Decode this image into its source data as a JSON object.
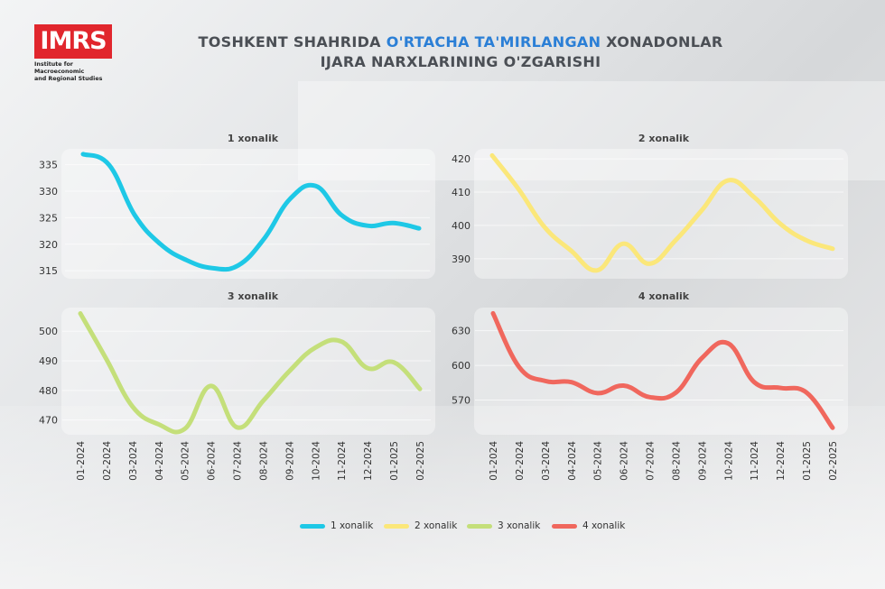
{
  "logo": {
    "text": "IMRS",
    "line1": "Institute for Macroeconomic",
    "line2": "and Regional Studies"
  },
  "title": {
    "line1_part1": "TOSHKENT SHAHRIDA ",
    "line1_highlight": "O'RTACHA TA'MIRLANGAN",
    "line1_part2": " XONADONLAR",
    "line2": "IJARA NARXLARINING O'ZGARISHI",
    "highlight_color": "#2b7fd6"
  },
  "chart_data": [
    {
      "type": "line",
      "title": "1 xonalik",
      "color": "#1ec8e6",
      "x": [
        "01-2024",
        "02-2024",
        "03-2024",
        "04-2024",
        "05-2024",
        "06-2024",
        "07-2024",
        "08-2024",
        "09-2024",
        "10-2024",
        "11-2024",
        "12-2024",
        "01-2025",
        "02-2025"
      ],
      "values": [
        337,
        335,
        325.5,
        320,
        317,
        315.5,
        316,
        321,
        328.5,
        331,
        325.5,
        323.5,
        324,
        323
      ],
      "yticks": [
        315,
        320,
        325,
        330,
        335
      ],
      "ylim": [
        313.5,
        338
      ],
      "xlabels_visible": false
    },
    {
      "type": "line",
      "title": "2 xonalik",
      "color": "#fbe77a",
      "x": [
        "01-2024",
        "02-2024",
        "03-2024",
        "04-2024",
        "05-2024",
        "06-2024",
        "07-2024",
        "08-2024",
        "09-2024",
        "10-2024",
        "11-2024",
        "12-2024",
        "01-2025",
        "02-2025"
      ],
      "values": [
        421,
        411,
        399.5,
        392.5,
        386.5,
        394.5,
        388.5,
        395.5,
        404.5,
        413.5,
        408.5,
        400.5,
        395.5,
        393
      ],
      "yticks": [
        390,
        400,
        410,
        420
      ],
      "ylim": [
        384,
        423
      ],
      "xlabels_visible": false
    },
    {
      "type": "line",
      "title": "3 xonalik",
      "color": "#c4df7a",
      "x": [
        "01-2024",
        "02-2024",
        "03-2024",
        "04-2024",
        "05-2024",
        "06-2024",
        "07-2024",
        "08-2024",
        "09-2024",
        "10-2024",
        "11-2024",
        "12-2024",
        "01-2025",
        "02-2025"
      ],
      "values": [
        506,
        490.5,
        474.5,
        468.5,
        467,
        481.5,
        467.5,
        476.5,
        486.5,
        494.5,
        496.5,
        487.5,
        489.5,
        480.5
      ],
      "yticks": [
        470,
        480,
        490,
        500
      ],
      "ylim": [
        465,
        508
      ],
      "xlabels_visible": true
    },
    {
      "type": "line",
      "title": "4 xonalik",
      "color": "#f0675d",
      "x": [
        "01-2024",
        "02-2024",
        "03-2024",
        "04-2024",
        "05-2024",
        "06-2024",
        "07-2024",
        "08-2024",
        "09-2024",
        "10-2024",
        "11-2024",
        "12-2024",
        "01-2025",
        "02-2025"
      ],
      "values": [
        645,
        598.5,
        586.5,
        585.5,
        576,
        582.5,
        572.5,
        576.5,
        606.5,
        619,
        585.5,
        580.5,
        576.5,
        546
      ],
      "yticks": [
        570,
        600,
        630
      ],
      "ylim": [
        540,
        650
      ],
      "xlabels_visible": true
    }
  ],
  "legend": [
    {
      "label": "1 xonalik",
      "color": "#1ec8e6"
    },
    {
      "label": "2 xonalik",
      "color": "#fbe77a"
    },
    {
      "label": "3 xonalik",
      "color": "#c4df7a"
    },
    {
      "label": "4 xonalik",
      "color": "#f0675d"
    }
  ]
}
